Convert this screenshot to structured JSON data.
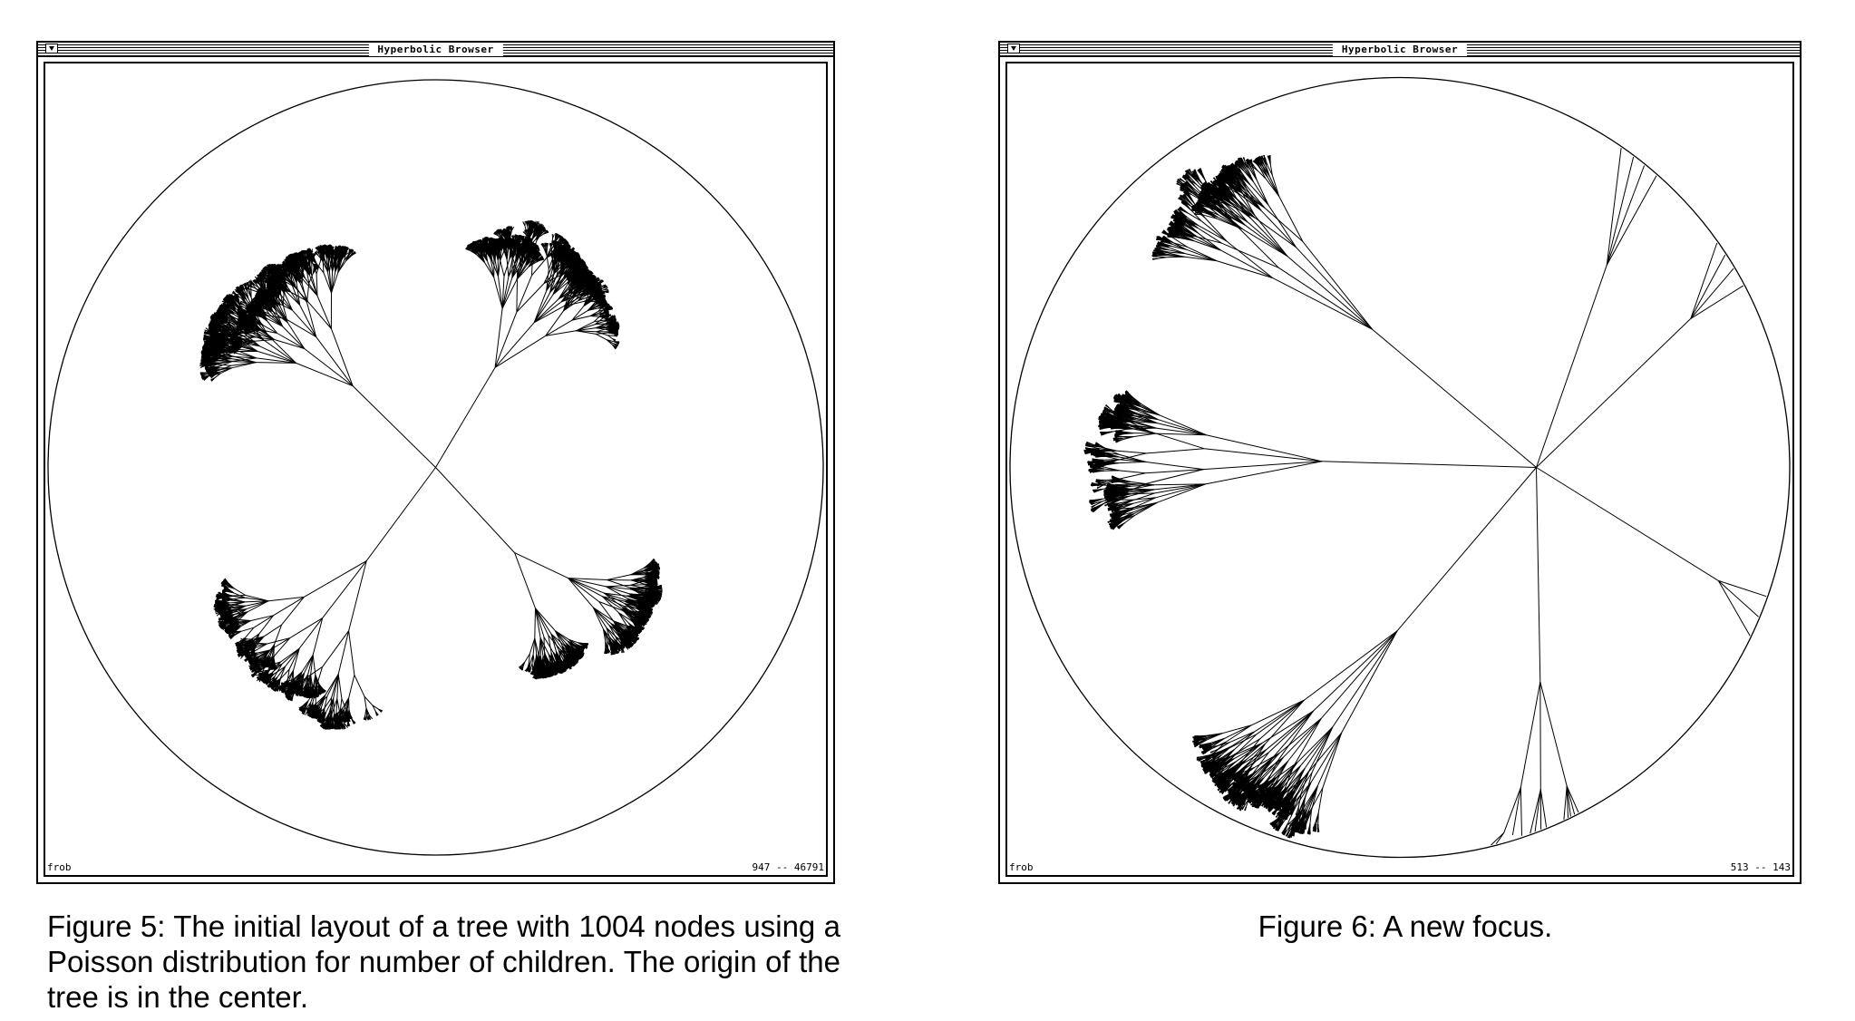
{
  "figures": [
    {
      "window": {
        "title": "Hyperbolic Browser",
        "status_left": "frob",
        "status_right": "947 -- 46791"
      },
      "caption": "Figure 5: The initial layout of a tree with 1004 nodes using a Poisson distribution for number of children. The origin of the tree is in the center."
    },
    {
      "window": {
        "title": "Hyperbolic Browser",
        "status_left": "frob",
        "status_right": "513 -- 143"
      },
      "caption": "Figure 6: A new focus."
    }
  ],
  "icons": [
    "window-menu-icon"
  ]
}
